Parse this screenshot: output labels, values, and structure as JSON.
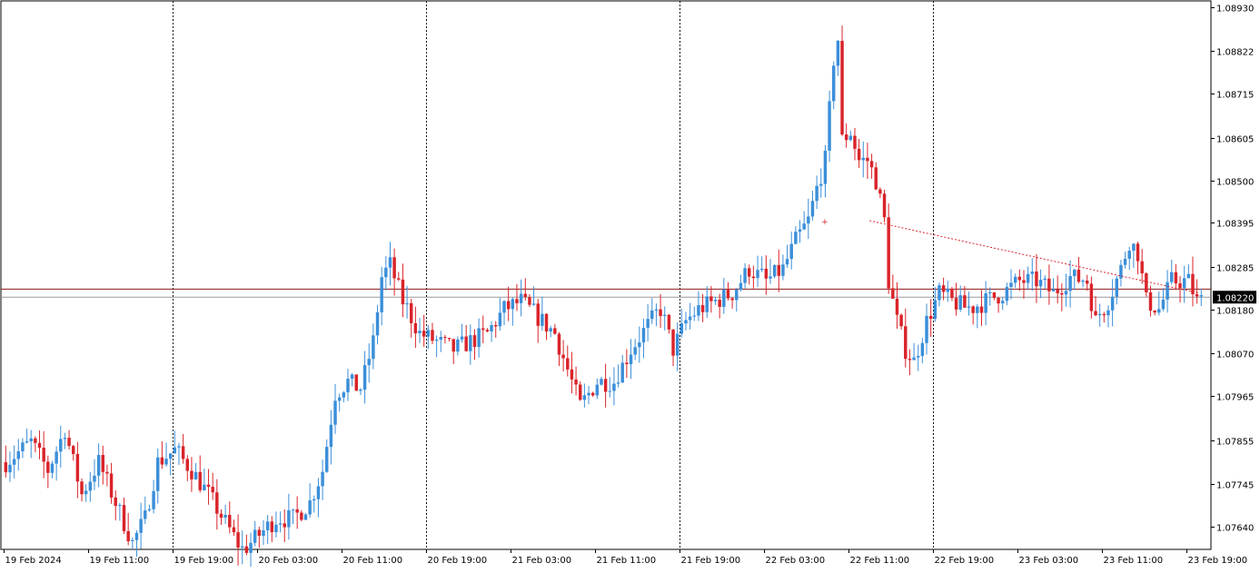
{
  "chart_data": {
    "type": "candlestick",
    "ylim": [
      1.0758,
      1.0896
    ],
    "y_ticks": [
      "1.08930",
      "1.08822",
      "1.08715",
      "1.08605",
      "1.08500",
      "1.08395",
      "1.08285",
      "1.08180",
      "1.08070",
      "1.07965",
      "1.07855",
      "1.07745",
      "1.07640"
    ],
    "x_ticks": [
      {
        "label": "19 Feb 2024",
        "index": 0
      },
      {
        "label": "19 Feb 11:00",
        "index": 20
      },
      {
        "label": "19 Feb 19:00",
        "index": 40
      },
      {
        "label": "20 Feb 03:00",
        "index": 60
      },
      {
        "label": "20 Feb 11:00",
        "index": 80
      },
      {
        "label": "20 Feb 19:00",
        "index": 100
      },
      {
        "label": "21 Feb 03:00",
        "index": 120
      },
      {
        "label": "21 Feb 11:00",
        "index": 140
      },
      {
        "label": "21 Feb 19:00",
        "index": 160
      },
      {
        "label": "22 Feb 03:00",
        "index": 180
      },
      {
        "label": "22 Feb 11:00",
        "index": 200
      },
      {
        "label": "22 Feb 19:00",
        "index": 220
      },
      {
        "label": "23 Feb 03:00",
        "index": 240
      },
      {
        "label": "23 Feb 11:00",
        "index": 260
      },
      {
        "label": "23 Feb 19:00",
        "index": 280
      }
    ],
    "period_separators": [
      40,
      100,
      160,
      220
    ],
    "current_price": "1.08220",
    "price_lines": [
      1.0823,
      1.0821
    ],
    "bull_color": "#3b8fd9",
    "bear_color": "#d9242a",
    "keypoints": [
      [
        0,
        1.078
      ],
      [
        6,
        1.0785
      ],
      [
        10,
        1.0778
      ],
      [
        14,
        1.0788
      ],
      [
        18,
        1.0772
      ],
      [
        22,
        1.078
      ],
      [
        26,
        1.077
      ],
      [
        30,
        1.076
      ],
      [
        33,
        1.0766
      ],
      [
        36,
        1.078
      ],
      [
        40,
        1.0783
      ],
      [
        44,
        1.0778
      ],
      [
        48,
        1.0772
      ],
      [
        52,
        1.0765
      ],
      [
        56,
        1.0758
      ],
      [
        60,
        1.0762
      ],
      [
        64,
        1.0766
      ],
      [
        68,
        1.0766
      ],
      [
        72,
        1.077
      ],
      [
        75,
        1.0778
      ],
      [
        78,
        1.0797
      ],
      [
        81,
        1.08
      ],
      [
        84,
        1.0798
      ],
      [
        87,
        1.081
      ],
      [
        89,
        1.0826
      ],
      [
        91,
        1.0829
      ],
      [
        94,
        1.082
      ],
      [
        98,
        1.0812
      ],
      [
        102,
        1.081
      ],
      [
        106,
        1.0808
      ],
      [
        110,
        1.081
      ],
      [
        114,
        1.0812
      ],
      [
        118,
        1.0818
      ],
      [
        122,
        1.082
      ],
      [
        126,
        1.0816
      ],
      [
        130,
        1.0812
      ],
      [
        134,
        1.08
      ],
      [
        136,
        1.0794
      ],
      [
        140,
        1.08
      ],
      [
        144,
        1.08
      ],
      [
        148,
        1.0808
      ],
      [
        152,
        1.0814
      ],
      [
        155,
        1.0818
      ],
      [
        158,
        1.0808
      ],
      [
        161,
        1.0815
      ],
      [
        164,
        1.0818
      ],
      [
        168,
        1.082
      ],
      [
        172,
        1.0822
      ],
      [
        176,
        1.0828
      ],
      [
        180,
        1.0825
      ],
      [
        184,
        1.0828
      ],
      [
        187,
        1.0835
      ],
      [
        190,
        1.084
      ],
      [
        192,
        1.0848
      ],
      [
        194,
        1.0855
      ],
      [
        196,
        1.088
      ],
      [
        197,
        1.0885
      ],
      [
        198,
        1.086
      ],
      [
        200,
        1.0862
      ],
      [
        202,
        1.0855
      ],
      [
        204,
        1.0855
      ],
      [
        206,
        1.085
      ],
      [
        208,
        1.084
      ],
      [
        209,
        1.0825
      ],
      [
        211,
        1.0815
      ],
      [
        213,
        1.0808
      ],
      [
        215,
        1.0805
      ],
      [
        218,
        1.0815
      ],
      [
        221,
        1.0822
      ],
      [
        224,
        1.082
      ],
      [
        228,
        1.0818
      ],
      [
        232,
        1.082
      ],
      [
        236,
        1.0822
      ],
      [
        240,
        1.0825
      ],
      [
        244,
        1.0825
      ],
      [
        248,
        1.0822
      ],
      [
        252,
        1.0826
      ],
      [
        256,
        1.0825
      ],
      [
        258,
        1.0815
      ],
      [
        261,
        1.082
      ],
      [
        264,
        1.0828
      ],
      [
        266,
        1.0835
      ],
      [
        268,
        1.0832
      ],
      [
        270,
        1.082
      ],
      [
        273,
        1.0818
      ],
      [
        276,
        1.0825
      ],
      [
        280,
        1.0825
      ],
      [
        282,
        1.082
      ],
      [
        283,
        1.082
      ]
    ]
  }
}
